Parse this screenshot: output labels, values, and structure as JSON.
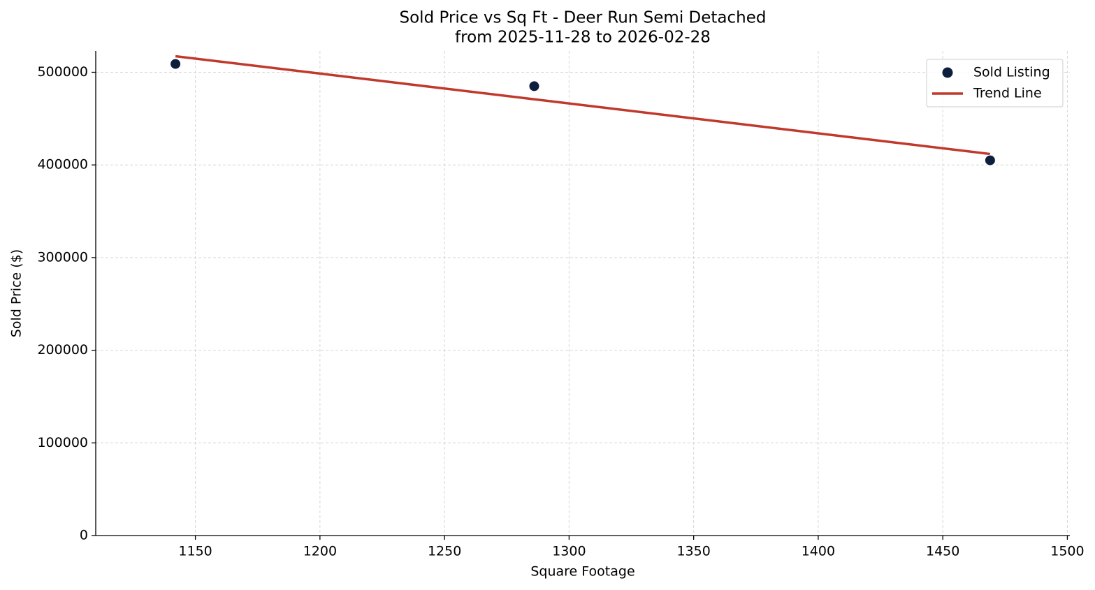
{
  "chart_data": {
    "type": "scatter",
    "title": "Sold Price vs Sq Ft - Deer Run Semi Detached",
    "subtitle": "from 2025-11-28 to 2026-02-28",
    "x_label": "Square Footage",
    "y_label": "Sold Price ($)",
    "series": [
      {
        "name": "Sold Listing",
        "type": "scatter",
        "color": "#0d1f3c",
        "x": [
          1142,
          1286,
          1469
        ],
        "values": [
          509000,
          485000,
          405000
        ]
      },
      {
        "name": "Trend Line",
        "type": "line",
        "color": "#c0392b",
        "x": [
          1142,
          1469
        ],
        "values": [
          517300,
          411800
        ]
      }
    ],
    "xlim": [
      1110,
      1501
    ],
    "xticks": [
      1150,
      1200,
      1250,
      1300,
      1350,
      1400,
      1450,
      1500
    ],
    "ylim": [
      0,
      523000
    ],
    "yticks": [
      0,
      100000,
      200000,
      300000,
      400000,
      500000
    ],
    "grid": true,
    "legend": "upper right"
  }
}
